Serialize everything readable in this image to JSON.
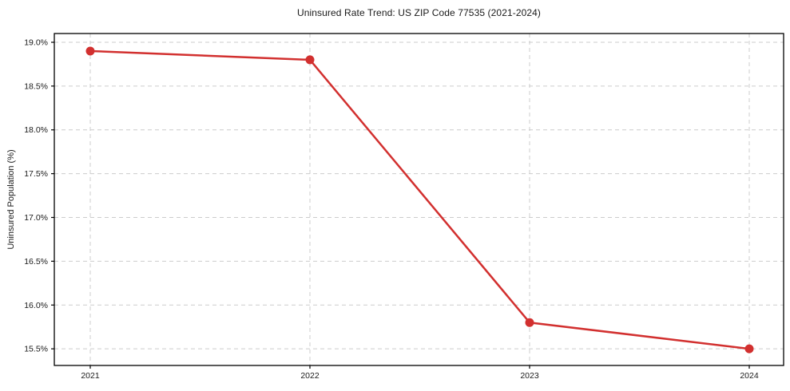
{
  "chart_data": {
    "type": "line",
    "title": "Uninsured Rate Trend: US ZIP Code 77535 (2021-2024)",
    "xlabel": "",
    "ylabel": "Uninsured Population (%)",
    "categories": [
      "2021",
      "2022",
      "2023",
      "2024"
    ],
    "series": [
      {
        "name": "Uninsured Rate",
        "values": [
          18.9,
          18.8,
          15.8,
          15.5
        ],
        "color": "#d2302f",
        "marker": "circle",
        "line_width": 2.5,
        "marker_radius": 5.5
      }
    ],
    "yticks": [
      15.5,
      16.0,
      16.5,
      17.0,
      17.5,
      18.0,
      18.5,
      19.0
    ],
    "ytick_suffix": "%",
    "ylim": [
      15.31,
      19.1
    ],
    "grid": true,
    "grid_color": "#cccccc",
    "grid_style": "dashed",
    "spine_color": "#000000",
    "background_color": "#ffffff",
    "legend": false
  }
}
